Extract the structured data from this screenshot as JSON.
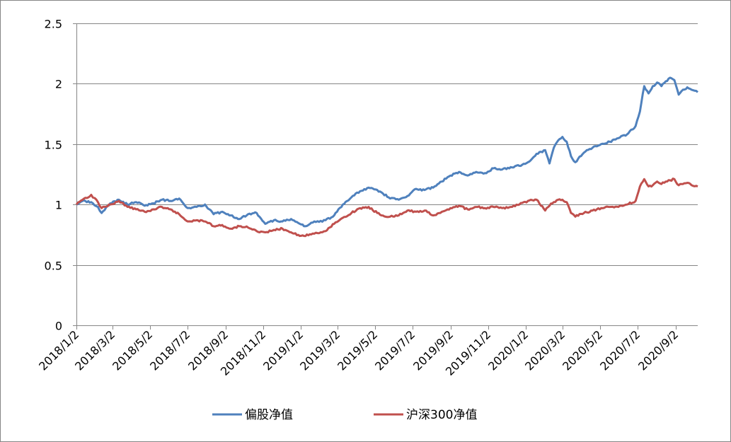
{
  "chart_data": {
    "type": "line",
    "title": "",
    "xlabel": "",
    "ylabel": "",
    "x_tick_labels": [
      "2018/1/2",
      "2018/3/2",
      "2018/5/2",
      "2018/7/2",
      "2018/9/2",
      "2018/11/2",
      "2019/1/2",
      "2019/3/2",
      "2019/5/2",
      "2019/7/2",
      "2019/9/2",
      "2019/11/2",
      "2020/1/2",
      "2020/3/2",
      "2020/5/2",
      "2020/7/2",
      "2020/9/2"
    ],
    "y_tick_labels": [
      "0",
      "0.5",
      "1",
      "1.5",
      "2",
      "2.5"
    ],
    "y_ticks": [
      0,
      0.5,
      1,
      1.5,
      2,
      2.5
    ],
    "ylim": [
      0,
      2.5
    ],
    "xlim": [
      "2018/1/2",
      "2020/10/8"
    ],
    "grid": "horizontal",
    "legend": "bottom",
    "series": [
      {
        "name": "偏股净值",
        "color": "#4F81BD",
        "points": [
          [
            "2018/1/2",
            1.0
          ],
          [
            "2018/1/12",
            1.03
          ],
          [
            "2018/1/26",
            1.02
          ],
          [
            "2018/2/6",
            0.98
          ],
          [
            "2018/2/12",
            0.93
          ],
          [
            "2018/2/26",
            1.01
          ],
          [
            "2018/3/12",
            1.04
          ],
          [
            "2018/3/26",
            1.0
          ],
          [
            "2018/4/9",
            1.02
          ],
          [
            "2018/4/23",
            0.99
          ],
          [
            "2018/5/7",
            1.01
          ],
          [
            "2018/5/21",
            1.04
          ],
          [
            "2018/6/4",
            1.03
          ],
          [
            "2018/6/18",
            1.05
          ],
          [
            "2018/7/2",
            0.97
          ],
          [
            "2018/7/16",
            0.98
          ],
          [
            "2018/7/30",
            1.0
          ],
          [
            "2018/8/13",
            0.92
          ],
          [
            "2018/8/27",
            0.94
          ],
          [
            "2018/9/10",
            0.91
          ],
          [
            "2018/9/24",
            0.88
          ],
          [
            "2018/10/8",
            0.92
          ],
          [
            "2018/10/22",
            0.93
          ],
          [
            "2018/11/5",
            0.84
          ],
          [
            "2018/11/19",
            0.87
          ],
          [
            "2018/12/3",
            0.86
          ],
          [
            "2018/12/17",
            0.88
          ],
          [
            "2018/12/31",
            0.84
          ],
          [
            "2019/1/7",
            0.82
          ],
          [
            "2019/1/21",
            0.85
          ],
          [
            "2019/2/11",
            0.87
          ],
          [
            "2019/2/25",
            0.91
          ],
          [
            "2019/3/11",
            1.0
          ],
          [
            "2019/3/25",
            1.06
          ],
          [
            "2019/4/8",
            1.11
          ],
          [
            "2019/4/22",
            1.14
          ],
          [
            "2019/5/6",
            1.12
          ],
          [
            "2019/5/13",
            1.1
          ],
          [
            "2019/5/27",
            1.05
          ],
          [
            "2019/6/10",
            1.04
          ],
          [
            "2019/6/24",
            1.07
          ],
          [
            "2019/7/8",
            1.13
          ],
          [
            "2019/7/22",
            1.12
          ],
          [
            "2019/8/5",
            1.14
          ],
          [
            "2019/8/19",
            1.19
          ],
          [
            "2019/9/2",
            1.24
          ],
          [
            "2019/9/16",
            1.27
          ],
          [
            "2019/9/30",
            1.24
          ],
          [
            "2019/10/14",
            1.27
          ],
          [
            "2019/10/28",
            1.26
          ],
          [
            "2019/11/11",
            1.3
          ],
          [
            "2019/11/25",
            1.29
          ],
          [
            "2019/12/9",
            1.31
          ],
          [
            "2019/12/23",
            1.32
          ],
          [
            "2020/1/6",
            1.35
          ],
          [
            "2020/1/20",
            1.42
          ],
          [
            "2020/2/3",
            1.45
          ],
          [
            "2020/2/10",
            1.34
          ],
          [
            "2020/2/17",
            1.47
          ],
          [
            "2020/2/24",
            1.53
          ],
          [
            "2020/3/2",
            1.56
          ],
          [
            "2020/3/9",
            1.52
          ],
          [
            "2020/3/16",
            1.4
          ],
          [
            "2020/3/23",
            1.35
          ],
          [
            "2020/4/6",
            1.43
          ],
          [
            "2020/4/20",
            1.47
          ],
          [
            "2020/5/4",
            1.5
          ],
          [
            "2020/5/18",
            1.52
          ],
          [
            "2020/6/1",
            1.55
          ],
          [
            "2020/6/15",
            1.58
          ],
          [
            "2020/6/29",
            1.65
          ],
          [
            "2020/7/6",
            1.77
          ],
          [
            "2020/7/13",
            1.98
          ],
          [
            "2020/7/20",
            1.92
          ],
          [
            "2020/7/27",
            1.98
          ],
          [
            "2020/8/3",
            2.01
          ],
          [
            "2020/8/10",
            1.98
          ],
          [
            "2020/8/17",
            2.02
          ],
          [
            "2020/8/24",
            2.05
          ],
          [
            "2020/8/31",
            2.03
          ],
          [
            "2020/9/7",
            1.91
          ],
          [
            "2020/9/14",
            1.95
          ],
          [
            "2020/9/21",
            1.97
          ],
          [
            "2020/9/28",
            1.95
          ],
          [
            "2020/10/8",
            1.93
          ]
        ]
      },
      {
        "name": "沪深300净值",
        "color": "#C0504D",
        "points": [
          [
            "2018/1/2",
            1.0
          ],
          [
            "2018/1/12",
            1.04
          ],
          [
            "2018/1/26",
            1.08
          ],
          [
            "2018/2/6",
            1.02
          ],
          [
            "2018/2/12",
            0.97
          ],
          [
            "2018/2/26",
            1.0
          ],
          [
            "2018/3/12",
            1.03
          ],
          [
            "2018/3/26",
            0.98
          ],
          [
            "2018/4/9",
            0.96
          ],
          [
            "2018/4/23",
            0.94
          ],
          [
            "2018/5/7",
            0.96
          ],
          [
            "2018/5/21",
            0.98
          ],
          [
            "2018/6/4",
            0.96
          ],
          [
            "2018/6/18",
            0.92
          ],
          [
            "2018/7/2",
            0.86
          ],
          [
            "2018/7/16",
            0.87
          ],
          [
            "2018/7/30",
            0.86
          ],
          [
            "2018/8/13",
            0.82
          ],
          [
            "2018/8/27",
            0.83
          ],
          [
            "2018/9/10",
            0.8
          ],
          [
            "2018/9/24",
            0.82
          ],
          [
            "2018/10/8",
            0.81
          ],
          [
            "2018/10/22",
            0.78
          ],
          [
            "2018/11/5",
            0.77
          ],
          [
            "2018/11/19",
            0.79
          ],
          [
            "2018/12/3",
            0.8
          ],
          [
            "2018/12/17",
            0.77
          ],
          [
            "2018/12/31",
            0.74
          ],
          [
            "2019/1/7",
            0.74
          ],
          [
            "2019/1/21",
            0.76
          ],
          [
            "2019/2/11",
            0.78
          ],
          [
            "2019/2/25",
            0.84
          ],
          [
            "2019/3/11",
            0.89
          ],
          [
            "2019/3/25",
            0.93
          ],
          [
            "2019/4/8",
            0.97
          ],
          [
            "2019/4/22",
            0.98
          ],
          [
            "2019/5/6",
            0.93
          ],
          [
            "2019/5/13",
            0.91
          ],
          [
            "2019/5/27",
            0.9
          ],
          [
            "2019/6/10",
            0.91
          ],
          [
            "2019/6/24",
            0.95
          ],
          [
            "2019/7/8",
            0.94
          ],
          [
            "2019/7/22",
            0.95
          ],
          [
            "2019/8/5",
            0.91
          ],
          [
            "2019/8/19",
            0.94
          ],
          [
            "2019/9/2",
            0.97
          ],
          [
            "2019/9/16",
            0.99
          ],
          [
            "2019/9/30",
            0.96
          ],
          [
            "2019/10/14",
            0.98
          ],
          [
            "2019/10/28",
            0.97
          ],
          [
            "2019/11/11",
            0.98
          ],
          [
            "2019/11/25",
            0.97
          ],
          [
            "2019/12/9",
            0.98
          ],
          [
            "2019/12/23",
            1.0
          ],
          [
            "2020/1/6",
            1.03
          ],
          [
            "2020/1/20",
            1.04
          ],
          [
            "2020/2/3",
            0.95
          ],
          [
            "2020/2/10",
            0.99
          ],
          [
            "2020/2/17",
            1.02
          ],
          [
            "2020/2/24",
            1.04
          ],
          [
            "2020/3/2",
            1.04
          ],
          [
            "2020/3/9",
            1.02
          ],
          [
            "2020/3/16",
            0.93
          ],
          [
            "2020/3/23",
            0.9
          ],
          [
            "2020/4/6",
            0.93
          ],
          [
            "2020/4/20",
            0.95
          ],
          [
            "2020/5/4",
            0.97
          ],
          [
            "2020/5/18",
            0.98
          ],
          [
            "2020/6/1",
            0.98
          ],
          [
            "2020/6/15",
            1.0
          ],
          [
            "2020/6/29",
            1.03
          ],
          [
            "2020/7/6",
            1.15
          ],
          [
            "2020/7/13",
            1.21
          ],
          [
            "2020/7/20",
            1.15
          ],
          [
            "2020/7/27",
            1.16
          ],
          [
            "2020/8/3",
            1.19
          ],
          [
            "2020/8/10",
            1.17
          ],
          [
            "2020/8/17",
            1.19
          ],
          [
            "2020/8/24",
            1.2
          ],
          [
            "2020/8/31",
            1.21
          ],
          [
            "2020/9/7",
            1.16
          ],
          [
            "2020/9/14",
            1.17
          ],
          [
            "2020/9/21",
            1.18
          ],
          [
            "2020/9/28",
            1.16
          ],
          [
            "2020/10/8",
            1.15
          ]
        ]
      }
    ]
  }
}
